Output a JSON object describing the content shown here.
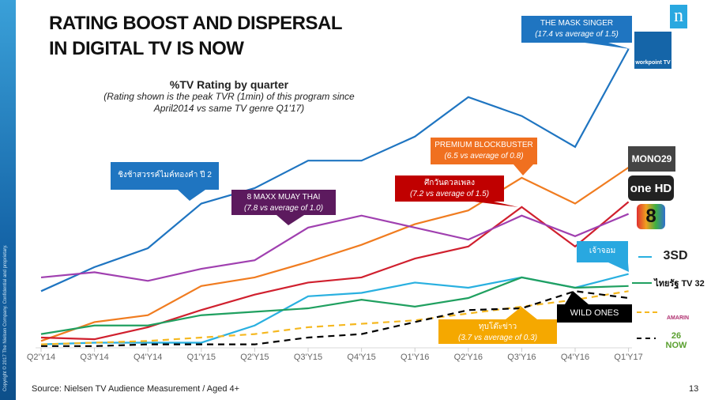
{
  "title_line1": "RATING BOOST AND DISPERSAL",
  "title_line2": "IN DIGITAL TV IS NOW",
  "copyright": "Copyright © 2017 The Nielsen Company. Confidential and proprietary.",
  "brand_logo": "n",
  "source": "Source: Nielsen TV Audience Measurement  / Aged 4+",
  "page_number": "13",
  "callouts": {
    "mask": {
      "title": "THE MASK SINGER",
      "note": "(17.4 vs average of 1.5)",
      "color": "#1f75c1"
    },
    "blue_thai": {
      "title": "ชิงช้าสวรรค์ไมค์ทองคำ ปี 2",
      "color": "#1f75c1"
    },
    "muay": {
      "title": "8 MAXX MUAY THAI",
      "note": "(7.8 vs average of 1.0)",
      "color": "#5c1a5e"
    },
    "premium": {
      "title": "PREMIUM BLOCKBUSTER",
      "note": "(6.5 vs average of 0.8)",
      "color": "#f07020"
    },
    "red_thai": {
      "title": "ศึกวันดวลเพลง",
      "note": "(7.2 vs average of 1.5)",
      "color": "#c00000"
    },
    "chaojom": {
      "title": "เจ้าจอม",
      "color": "#29a8e0"
    },
    "wild": {
      "title": "WILD ONES",
      "color": "#000000"
    },
    "news": {
      "title": "ทุบโต๊ะข่าว",
      "note": "(3.7 vs average of 0.3)",
      "color": "#f5a800"
    }
  },
  "logos": {
    "workpoint": "workpoint TV",
    "mono": "MONO29",
    "one": "one HD",
    "ch8": "8",
    "ch3": "3SD",
    "thairath": "ไทยรัฐ TV 32",
    "amarin": "AMARIN",
    "now": "26 NOW"
  },
  "chart_data": {
    "type": "line",
    "title": "%TV Rating by quarter",
    "subtitle": "(Rating shown is the peak TVR (1min) of this program since April2014 vs same TV genre Q1'17)",
    "categories": [
      "Q2'Y14",
      "Q3'Y14",
      "Q4'Y14",
      "Q1'Y15",
      "Q2'Y15",
      "Q3'Y15",
      "Q4'Y15",
      "Q1'Y16",
      "Q2'Y16",
      "Q3'Y16",
      "Q4'Y16",
      "Q1'Y17"
    ],
    "ylim": [
      0,
      18
    ],
    "grid": false,
    "legend": "right (channel logos)",
    "series": [
      {
        "channel": "workpoint",
        "color": "#1f75c1",
        "dash": false,
        "values": [
          3.3,
          4.7,
          5.8,
          8.4,
          9.3,
          10.9,
          10.9,
          12.3,
          14.6,
          13.5,
          11.7,
          17.4
        ]
      },
      {
        "channel": "mono",
        "color": "#f07c20",
        "dash": false,
        "values": [
          0.4,
          1.5,
          1.9,
          3.6,
          4.1,
          5.0,
          6.0,
          7.2,
          8.0,
          9.9,
          8.4,
          10.5
        ]
      },
      {
        "channel": "one",
        "color": "#d0202e",
        "dash": false,
        "values": [
          0.6,
          0.5,
          1.2,
          2.2,
          3.1,
          3.8,
          4.1,
          5.2,
          5.9,
          8.2,
          5.9,
          8.5
        ]
      },
      {
        "channel": "ch8",
        "color": "#a040b0",
        "dash": false,
        "values": [
          4.1,
          4.4,
          3.9,
          4.6,
          5.1,
          7.0,
          7.7,
          7.0,
          6.3,
          7.7,
          6.5,
          7.8
        ]
      },
      {
        "channel": "ch3",
        "color": "#29b0e0",
        "dash": false,
        "values": [
          0.2,
          0.3,
          0.3,
          0.3,
          1.3,
          3.0,
          3.2,
          3.8,
          3.5,
          4.1,
          3.5,
          4.3
        ]
      },
      {
        "channel": "thairath",
        "color": "#20a060",
        "dash": false,
        "values": [
          0.8,
          1.3,
          1.3,
          1.9,
          2.1,
          2.3,
          2.8,
          2.4,
          2.9,
          4.1,
          3.5,
          3.6
        ]
      },
      {
        "channel": "amarin",
        "color": "#f5b820",
        "dash": true,
        "values": [
          0.2,
          0.3,
          0.4,
          0.6,
          0.8,
          1.2,
          1.4,
          1.6,
          2.0,
          2.4,
          2.8,
          3.3
        ]
      },
      {
        "channel": "now",
        "color": "#000000",
        "dash": true,
        "values": [
          0.1,
          0.1,
          0.2,
          0.2,
          0.2,
          0.6,
          0.8,
          1.5,
          2.2,
          2.3,
          3.3,
          2.9
        ]
      }
    ]
  }
}
